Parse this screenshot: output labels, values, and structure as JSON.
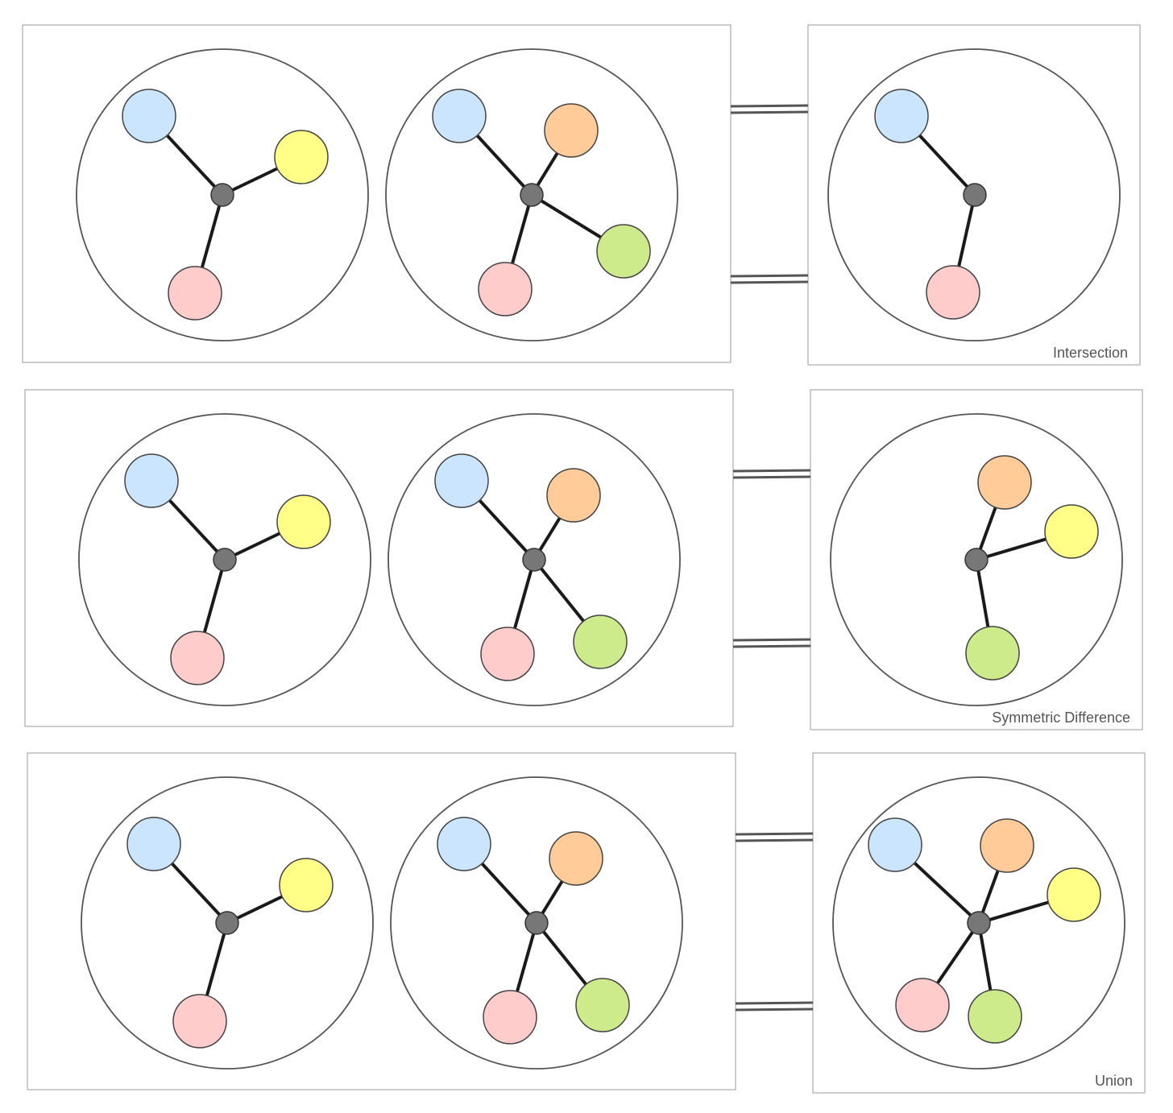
{
  "colors": {
    "blue": "#cce5ff",
    "yellow": "#ffff88",
    "pink": "#ffcccc",
    "orange": "#ffcc99",
    "green": "#cdeb8b",
    "hub": "#777777",
    "edge": "#1a1a1a",
    "circle_stroke": "#555555",
    "frame_stroke": "#999999"
  },
  "operations": [
    {
      "id": "intersection",
      "label": "Intersection",
      "set_a": [
        "blue",
        "yellow",
        "pink"
      ],
      "set_b": [
        "blue",
        "orange",
        "green",
        "pink"
      ],
      "result": [
        "blue",
        "pink"
      ]
    },
    {
      "id": "symmetric-difference",
      "label": "Symmetric Difference",
      "set_a": [
        "blue",
        "yellow",
        "pink"
      ],
      "set_b": [
        "blue",
        "orange",
        "green",
        "pink"
      ],
      "result": [
        "orange",
        "yellow",
        "green"
      ]
    },
    {
      "id": "union",
      "label": "Union",
      "set_a": [
        "blue",
        "yellow",
        "pink"
      ],
      "set_b": [
        "blue",
        "orange",
        "green",
        "pink"
      ],
      "result": [
        "blue",
        "orange",
        "yellow",
        "pink",
        "green"
      ]
    }
  ]
}
